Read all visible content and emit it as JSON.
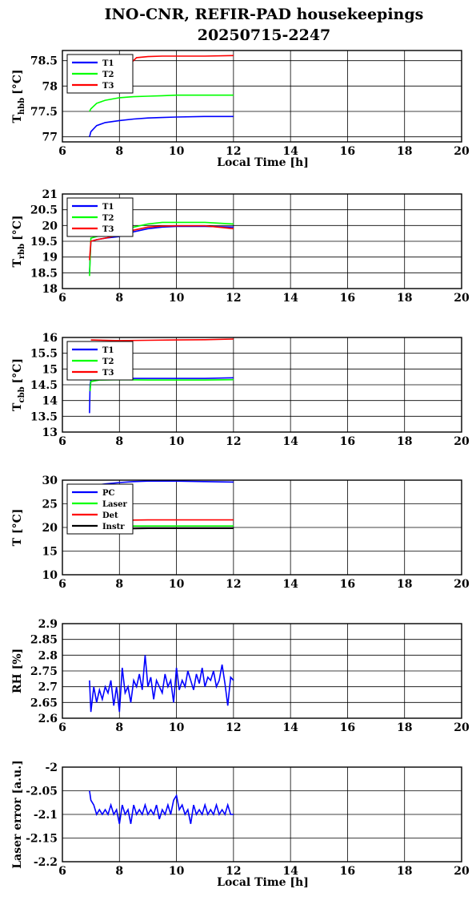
{
  "title_line1": "INO-CNR, REFIR-PAD housekeepings",
  "title_line2": "20250715-2247",
  "chart_data": [
    {
      "type": "line",
      "ylabel_main": "T",
      "ylabel_sub": "hbb",
      "ylabel_unit": "[°C]",
      "xlabel": "Local Time [h]",
      "xlim": [
        6,
        20
      ],
      "ylim": [
        76.9,
        78.7
      ],
      "xticks": [
        6,
        8,
        10,
        12,
        14,
        16,
        18,
        20
      ],
      "yticks": [
        77,
        77.5,
        78,
        78.5
      ],
      "ytick_labels": [
        "77",
        "77.5",
        "78",
        "78.5"
      ],
      "grid": true,
      "legend": "top-left",
      "series": [
        {
          "name": "T1",
          "color": "#0000ff",
          "x": [
            6.95,
            7.0,
            7.2,
            7.5,
            8.0,
            8.5,
            9.0,
            9.5,
            10.0,
            11.0,
            12.0
          ],
          "y": [
            77.0,
            77.1,
            77.22,
            77.28,
            77.32,
            77.35,
            77.37,
            77.38,
            77.39,
            77.4,
            77.4
          ]
        },
        {
          "name": "T2",
          "color": "#00ff00",
          "x": [
            6.95,
            7.0,
            7.2,
            7.5,
            8.0,
            8.5,
            9.0,
            9.5,
            10.0,
            11.0,
            12.0
          ],
          "y": [
            77.5,
            77.55,
            77.66,
            77.72,
            77.77,
            77.79,
            77.8,
            77.81,
            77.82,
            77.82,
            77.82
          ]
        },
        {
          "name": "T3",
          "color": "#ff0000",
          "x": [
            7.9,
            8.0,
            8.2,
            8.4,
            8.6,
            9.0,
            9.5,
            10.0,
            11.0,
            12.0
          ],
          "y": [
            78.48,
            78.52,
            78.55,
            78.45,
            78.56,
            78.58,
            78.59,
            78.59,
            78.59,
            78.6
          ]
        }
      ]
    },
    {
      "type": "line",
      "ylabel_main": "T",
      "ylabel_sub": "rbb",
      "ylabel_unit": "[°C]",
      "xlabel": "",
      "xlim": [
        6,
        20
      ],
      "ylim": [
        18,
        21
      ],
      "xticks": [
        6,
        8,
        10,
        12,
        14,
        16,
        18,
        20
      ],
      "yticks": [
        18,
        18.5,
        19,
        19.5,
        20,
        20.5,
        21
      ],
      "ytick_labels": [
        "18",
        "18.5",
        "19",
        "19.5",
        "20",
        "20.5",
        "21"
      ],
      "grid": true,
      "legend": "top-left",
      "series": [
        {
          "name": "T1",
          "color": "#0000ff",
          "x": [
            6.95,
            7.0,
            7.2,
            7.5,
            8.0,
            8.5,
            9.0,
            9.5,
            10.0,
            11.0,
            12.0
          ],
          "y": [
            18.5,
            19.5,
            19.55,
            19.6,
            19.65,
            19.8,
            19.9,
            19.95,
            19.97,
            19.97,
            19.95
          ]
        },
        {
          "name": "T2",
          "color": "#00ff00",
          "x": [
            6.95,
            7.0,
            7.2,
            7.5,
            8.0,
            8.5,
            9.0,
            9.5,
            10.0,
            11.0,
            12.0
          ],
          "y": [
            18.4,
            19.6,
            19.65,
            19.7,
            19.8,
            19.95,
            20.05,
            20.1,
            20.1,
            20.1,
            20.05
          ]
        },
        {
          "name": "T3",
          "color": "#ff0000",
          "x": [
            6.95,
            7.0,
            7.2,
            7.5,
            8.0,
            8.5,
            9.0,
            9.5,
            10.0,
            11.0,
            12.0
          ],
          "y": [
            18.9,
            19.5,
            19.55,
            19.6,
            19.7,
            19.85,
            19.95,
            19.98,
            19.99,
            19.99,
            19.9
          ]
        }
      ]
    },
    {
      "type": "line",
      "ylabel_main": "T",
      "ylabel_sub": "cbb",
      "ylabel_unit": "[°C]",
      "xlabel": "",
      "xlim": [
        6,
        20
      ],
      "ylim": [
        13,
        16
      ],
      "xticks": [
        6,
        8,
        10,
        12,
        14,
        16,
        18,
        20
      ],
      "yticks": [
        13,
        13.5,
        14,
        14.5,
        15,
        15.5,
        16
      ],
      "ytick_labels": [
        "13",
        "13.5",
        "14",
        "14.5",
        "15",
        "15.5",
        "16"
      ],
      "grid": true,
      "legend": "top-left",
      "series": [
        {
          "name": "T1",
          "color": "#0000ff",
          "x": [
            6.95,
            6.97,
            7.0,
            7.3,
            8.0,
            9.0,
            10.0,
            11.0,
            12.0
          ],
          "y": [
            13.6,
            14.5,
            14.65,
            14.7,
            14.7,
            14.7,
            14.7,
            14.7,
            14.72
          ]
        },
        {
          "name": "T2",
          "color": "#00ff00",
          "x": [
            6.97,
            7.0,
            7.3,
            8.0,
            9.0,
            10.0,
            11.0,
            12.0
          ],
          "y": [
            14.3,
            14.6,
            14.65,
            14.66,
            14.65,
            14.65,
            14.65,
            14.66
          ]
        },
        {
          "name": "T3",
          "color": "#ff0000",
          "x": [
            7.0,
            8.0,
            9.0,
            10.0,
            11.0,
            12.0
          ],
          "y": [
            15.92,
            15.9,
            15.91,
            15.92,
            15.93,
            15.95
          ]
        }
      ]
    },
    {
      "type": "line",
      "ylabel_main": "T [°C]",
      "ylabel_sub": "",
      "ylabel_unit": "",
      "xlabel": "",
      "xlim": [
        6,
        20
      ],
      "ylim": [
        10,
        30
      ],
      "xticks": [
        6,
        8,
        10,
        12,
        14,
        16,
        18,
        20
      ],
      "yticks": [
        10,
        15,
        20,
        25,
        30
      ],
      "ytick_labels": [
        "10",
        "15",
        "20",
        "25",
        "30"
      ],
      "grid": true,
      "legend": "top-left",
      "series": [
        {
          "name": "PC",
          "color": "#0000ff",
          "x": [
            7.0,
            7.5,
            8.0,
            8.5,
            9.0,
            10.0,
            11.0,
            12.0
          ],
          "y": [
            28.8,
            29.2,
            29.5,
            29.7,
            29.8,
            29.8,
            29.7,
            29.6
          ]
        },
        {
          "name": "Laser",
          "color": "#00ff00",
          "x": [
            7.0,
            8.0,
            9.0,
            10.0,
            11.0,
            12.0
          ],
          "y": [
            20.2,
            20.3,
            20.3,
            20.3,
            20.3,
            20.3
          ]
        },
        {
          "name": "Det",
          "color": "#ff0000",
          "x": [
            7.0,
            7.5,
            8.0,
            9.0,
            10.0,
            11.0,
            12.0
          ],
          "y": [
            21.0,
            21.3,
            21.5,
            21.6,
            21.6,
            21.6,
            21.6
          ]
        },
        {
          "name": "Instr",
          "color": "#000000",
          "x": [
            7.0,
            8.0,
            9.0,
            10.0,
            11.0,
            12.0
          ],
          "y": [
            19.6,
            19.7,
            19.8,
            19.8,
            19.8,
            19.8
          ]
        }
      ]
    },
    {
      "type": "line",
      "ylabel_main": "RH [%]",
      "ylabel_sub": "",
      "ylabel_unit": "",
      "xlabel": "",
      "xlim": [
        6,
        20
      ],
      "ylim": [
        2.6,
        2.9
      ],
      "xticks": [
        6,
        8,
        10,
        12,
        14,
        16,
        18,
        20
      ],
      "yticks": [
        2.6,
        2.65,
        2.7,
        2.75,
        2.8,
        2.85,
        2.9
      ],
      "ytick_labels": [
        "2.6",
        "2.65",
        "2.7",
        "2.75",
        "2.8",
        "2.85",
        "2.9"
      ],
      "grid": true,
      "legend": "",
      "series": [
        {
          "color": "#0000ff",
          "x": [
            6.95,
            7.0,
            7.1,
            7.2,
            7.3,
            7.4,
            7.5,
            7.6,
            7.7,
            7.8,
            7.9,
            8.0,
            8.1,
            8.2,
            8.3,
            8.4,
            8.5,
            8.6,
            8.7,
            8.8,
            8.9,
            9.0,
            9.1,
            9.2,
            9.3,
            9.4,
            9.5,
            9.6,
            9.7,
            9.8,
            9.9,
            10.0,
            10.1,
            10.2,
            10.3,
            10.4,
            10.5,
            10.6,
            10.7,
            10.8,
            10.9,
            11.0,
            11.1,
            11.2,
            11.3,
            11.4,
            11.5,
            11.6,
            11.7,
            11.8,
            11.9,
            12.0
          ],
          "y": [
            2.72,
            2.62,
            2.7,
            2.65,
            2.69,
            2.66,
            2.7,
            2.68,
            2.72,
            2.64,
            2.7,
            2.62,
            2.76,
            2.68,
            2.7,
            2.65,
            2.72,
            2.7,
            2.74,
            2.69,
            2.8,
            2.7,
            2.73,
            2.66,
            2.72,
            2.7,
            2.68,
            2.74,
            2.7,
            2.72,
            2.65,
            2.76,
            2.69,
            2.72,
            2.7,
            2.75,
            2.72,
            2.69,
            2.74,
            2.71,
            2.76,
            2.7,
            2.73,
            2.72,
            2.75,
            2.7,
            2.72,
            2.77,
            2.71,
            2.64,
            2.73,
            2.72
          ]
        }
      ]
    },
    {
      "type": "line",
      "ylabel_main": "Laser error [a.u.]",
      "ylabel_sub": "",
      "ylabel_unit": "",
      "xlabel": "Local Time [h]",
      "xlim": [
        6,
        20
      ],
      "ylim": [
        -2.2,
        -2.0
      ],
      "xticks": [
        6,
        8,
        10,
        12,
        14,
        16,
        18,
        20
      ],
      "yticks": [
        -2.2,
        -2.15,
        -2.1,
        -2.05,
        -2.0
      ],
      "ytick_labels": [
        "-2.2",
        "-2.15",
        "-2.1",
        "-2.05",
        "-2"
      ],
      "grid": true,
      "legend": "",
      "series": [
        {
          "color": "#0000ff",
          "x": [
            6.95,
            7.0,
            7.1,
            7.2,
            7.3,
            7.4,
            7.5,
            7.6,
            7.7,
            7.8,
            7.9,
            8.0,
            8.1,
            8.2,
            8.3,
            8.4,
            8.5,
            8.6,
            8.7,
            8.8,
            8.9,
            9.0,
            9.1,
            9.2,
            9.3,
            9.4,
            9.5,
            9.6,
            9.7,
            9.8,
            9.9,
            10.0,
            10.1,
            10.2,
            10.3,
            10.4,
            10.5,
            10.6,
            10.7,
            10.8,
            10.9,
            11.0,
            11.1,
            11.2,
            11.3,
            11.4,
            11.5,
            11.6,
            11.7,
            11.8,
            11.9,
            12.0
          ],
          "y": [
            -2.05,
            -2.07,
            -2.08,
            -2.1,
            -2.09,
            -2.1,
            -2.09,
            -2.1,
            -2.08,
            -2.1,
            -2.09,
            -2.12,
            -2.08,
            -2.1,
            -2.09,
            -2.12,
            -2.08,
            -2.1,
            -2.09,
            -2.1,
            -2.08,
            -2.1,
            -2.09,
            -2.1,
            -2.08,
            -2.11,
            -2.09,
            -2.1,
            -2.08,
            -2.1,
            -2.07,
            -2.06,
            -2.09,
            -2.08,
            -2.1,
            -2.09,
            -2.12,
            -2.08,
            -2.1,
            -2.09,
            -2.1,
            -2.08,
            -2.1,
            -2.09,
            -2.1,
            -2.08,
            -2.1,
            -2.09,
            -2.1,
            -2.08,
            -2.1,
            -2.1
          ]
        }
      ]
    }
  ]
}
